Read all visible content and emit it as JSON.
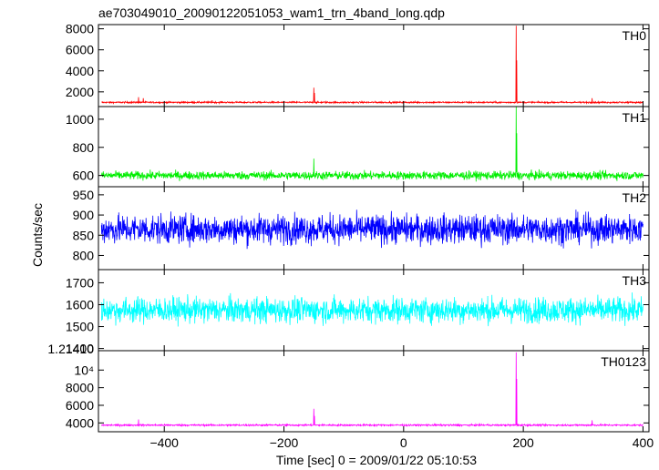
{
  "chart_data": {
    "type": "line",
    "title": "ae703049010_20090122051053_wam1_trn_4band_long.qdp",
    "xlabel": "Time [sec] 0 = 2009/01/22 05:10:53",
    "ylabel": "Counts/sec",
    "xlim": [
      -510,
      410
    ],
    "x_ticks": [
      -400,
      -200,
      0,
      200,
      400
    ],
    "x_tick_labels": [
      "−400",
      "−200",
      "0",
      "200",
      "400"
    ],
    "panels": [
      {
        "name": "TH0",
        "color": "#ff0000",
        "ylim": [
          600,
          8400
        ],
        "y_ticks": [
          2000,
          4000,
          6000,
          8000
        ],
        "y_tick_labels": [
          "2000",
          "4000",
          "6000",
          "8000"
        ],
        "baseline": 1000,
        "noise": 70,
        "spikes": [
          {
            "x": -443,
            "y": 1500
          },
          {
            "x": -435,
            "y": 1400
          },
          {
            "x": -320,
            "y": 1200
          },
          {
            "x": -150,
            "y": 2400
          },
          {
            "x": -149,
            "y": 1900
          },
          {
            "x": 188,
            "y": 8300
          },
          {
            "x": 189,
            "y": 5000
          },
          {
            "x": 315,
            "y": 1400
          }
        ]
      },
      {
        "name": "TH1",
        "color": "#00ee00",
        "ylim": [
          520,
          1090
        ],
        "y_ticks": [
          600,
          800,
          1000
        ],
        "y_tick_labels": [
          "600",
          "800",
          "1000"
        ],
        "baseline": 600,
        "noise": 28,
        "spikes": [
          {
            "x": -150,
            "y": 720
          },
          {
            "x": 188,
            "y": 1090
          },
          {
            "x": 189,
            "y": 900
          }
        ]
      },
      {
        "name": "TH2",
        "color": "#0000ff",
        "ylim": [
          765,
          970
        ],
        "y_ticks": [
          800,
          850,
          900,
          950
        ],
        "y_tick_labels": [
          "800",
          "850",
          "900",
          "950"
        ],
        "baseline": 865,
        "noise": 34,
        "spikes": []
      },
      {
        "name": "TH3",
        "color": "#00ffff",
        "ylim": [
          1390,
          1760
        ],
        "y_ticks": [
          1400,
          1500,
          1600,
          1700
        ],
        "y_tick_labels": [
          "1400",
          "1500",
          "1600",
          "1700"
        ],
        "baseline": 1575,
        "noise": 55,
        "spikes": []
      },
      {
        "name": "TH0123",
        "color": "#ff00ff",
        "ylim": [
          3000,
          12200
        ],
        "y_ticks": [
          4000,
          6000,
          8000,
          10000
        ],
        "y_tick_labels": [
          "4000",
          "6000",
          "8000",
          "10⁴"
        ],
        "y_extra_label": "1.21410",
        "baseline": 3750,
        "noise": 90,
        "spikes": [
          {
            "x": -443,
            "y": 4400
          },
          {
            "x": -150,
            "y": 5600
          },
          {
            "x": -149,
            "y": 4800
          },
          {
            "x": 188,
            "y": 12000
          },
          {
            "x": 189,
            "y": 9000
          },
          {
            "x": 315,
            "y": 4300
          }
        ]
      }
    ]
  }
}
